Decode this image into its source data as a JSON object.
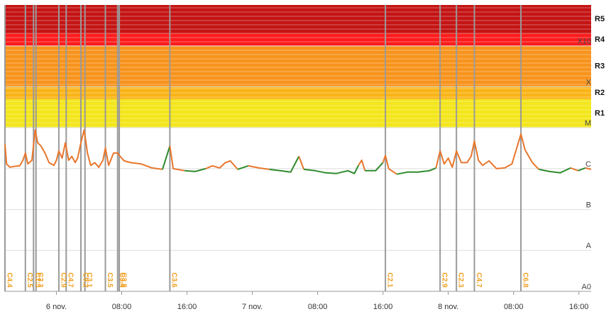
{
  "chart_data": {
    "type": "line",
    "log_scale": true,
    "grid": true,
    "xlim": [
      -6.3,
      65.5
    ],
    "xticks": [
      {
        "value": 0,
        "label": "6 nov."
      },
      {
        "value": 8,
        "label": "08:00"
      },
      {
        "value": 16,
        "label": "16:00"
      },
      {
        "value": 24,
        "label": "7 nov."
      },
      {
        "value": 32,
        "label": "08:00"
      },
      {
        "value": 40,
        "label": "16:00"
      },
      {
        "value": 48,
        "label": "8 nov."
      },
      {
        "value": 56,
        "label": "08:00"
      },
      {
        "value": 64,
        "label": "16:00"
      }
    ],
    "ylim": [
      1e-09,
      0.01
    ],
    "yticks": [
      {
        "value": 1e-09,
        "label": "A0"
      },
      {
        "value": 1e-08,
        "label": "A"
      },
      {
        "value": 1e-07,
        "label": "B"
      },
      {
        "value": 1e-06,
        "label": "C"
      },
      {
        "value": 1e-05,
        "label": "M"
      },
      {
        "value": 0.0001,
        "label": "X"
      },
      {
        "value": 0.001,
        "label": "X10"
      }
    ],
    "bands": [
      {
        "label": "R1",
        "from": 1e-05,
        "color": "#f3e61b"
      },
      {
        "label": "R2",
        "from": 5e-05,
        "color": "#f9b417"
      },
      {
        "label": "R3",
        "from": 0.0001,
        "color": "#f7941d"
      },
      {
        "label": "R4",
        "from": 0.001,
        "color": "#ff1c1c"
      },
      {
        "label": "R5",
        "from": 0.002,
        "color": "#c41414"
      }
    ],
    "series": [
      {
        "color": "#e8762c",
        "color_below": "#2e8b2e",
        "color_threshold": 1e-06,
        "x": [
          -6.3,
          -6.1,
          -5.7,
          -5.2,
          -4.5,
          -4.1,
          -3.8,
          -3.5,
          -3.0,
          -2.6,
          -2.3,
          -1.9,
          -1.4,
          -0.9,
          -0.3,
          0,
          0.3,
          0.7,
          1.1,
          1.5,
          1.9,
          2.3,
          2.6,
          3.0,
          3.4,
          3.8,
          4.2,
          4.7,
          5.2,
          5.7,
          6.0,
          6.4,
          7.0,
          7.5,
          7.8,
          8.3,
          9.1,
          10.4,
          11.7,
          13.0,
          13.9,
          14.3,
          15.7,
          17.0,
          18.3,
          19.1,
          20.0,
          20.7,
          21.3,
          22.2,
          23.5,
          24.8,
          26.1,
          27.4,
          28.7,
          29.7,
          30.3,
          31.7,
          33.0,
          34.3,
          35.7,
          36.5,
          37.0,
          37.4,
          37.8,
          39.1,
          40.0,
          40.3,
          40.7,
          41.7,
          43.0,
          44.3,
          45.7,
          46.5,
          47.0,
          47.5,
          48.0,
          48.5,
          49.0,
          49.6,
          50.3,
          50.8,
          51.2,
          51.7,
          52.2,
          53.0,
          53.9,
          54.9,
          55.8,
          56.9,
          57.4,
          58.3,
          59.1,
          60.4,
          61.7,
          63.0,
          63.9,
          64.8,
          65.5
        ],
        "values": [
          3.9e-06,
          1.3e-06,
          1.08e-06,
          1.13e-06,
          1.17e-06,
          1.6e-06,
          2.4e-06,
          1.3e-06,
          1.6e-06,
          8.9e-06,
          4.3e-06,
          3.6e-06,
          2.4e-06,
          1.4e-06,
          1.2e-06,
          1.6e-06,
          2.7e-06,
          1.8e-06,
          4.3e-06,
          1.6e-06,
          2e-06,
          1.4e-06,
          1.8e-06,
          4.3e-06,
          8.9e-06,
          2.4e-06,
          1.2e-06,
          1.4e-06,
          1.08e-06,
          1.6e-06,
          3.2e-06,
          1.2e-06,
          2.4e-06,
          2.4e-06,
          2e-06,
          1.55e-06,
          1.4e-06,
          1.3e-06,
          1.04e-06,
          9.6e-07,
          3.6e-06,
          1e-06,
          8.9e-07,
          8.5e-07,
          1e-06,
          1.17e-06,
          1.04e-06,
          1.4e-06,
          1.55e-06,
          9.6e-07,
          1.17e-06,
          1.04e-06,
          9.6e-07,
          8.9e-07,
          8.2e-07,
          2e-06,
          9.6e-07,
          8.9e-07,
          7.9e-07,
          7.6e-07,
          8.9e-07,
          7.6e-07,
          1.2e-06,
          1.6e-06,
          8.9e-07,
          8.9e-07,
          1.4e-06,
          2.1e-06,
          1e-06,
          7.3e-07,
          8.2e-07,
          8.2e-07,
          8.9e-07,
          1.04e-06,
          2.7e-06,
          1.3e-06,
          1.8e-06,
          1.08e-06,
          2.7e-06,
          1.4e-06,
          1.4e-06,
          2e-06,
          4.7e-06,
          1.6e-06,
          1.2e-06,
          1.55e-06,
          1e-06,
          1.04e-06,
          1.3e-06,
          7e-06,
          2.9e-06,
          1.4e-06,
          9.6e-07,
          8.5e-07,
          7.9e-07,
          1.04e-06,
          8.9e-07,
          1.04e-06,
          9.6e-07
        ]
      }
    ],
    "events": [
      {
        "x": -6.3,
        "label": "C4.4"
      },
      {
        "x": -3.8,
        "label": "C2.5"
      },
      {
        "x": -2.8,
        "label": "C1.3"
      },
      {
        "x": -2.5,
        "label": "C3.3"
      },
      {
        "x": 0.3,
        "label": "C2.9"
      },
      {
        "x": 1.2,
        "label": "C4.7"
      },
      {
        "x": 3.0,
        "label": "C9.2"
      },
      {
        "x": 3.5,
        "label": "C3.1"
      },
      {
        "x": 6.0,
        "label": "C3.5"
      },
      {
        "x": 7.5,
        "label": "C3.4"
      },
      {
        "x": 7.7,
        "label": "C3.8"
      },
      {
        "x": 13.9,
        "label": "C3.6"
      },
      {
        "x": 40.3,
        "label": "C2.1"
      },
      {
        "x": 47.0,
        "label": "C2.9"
      },
      {
        "x": 49.0,
        "label": "C2.3"
      },
      {
        "x": 51.2,
        "label": "C4.7"
      },
      {
        "x": 56.9,
        "label": "C6.8"
      }
    ]
  }
}
